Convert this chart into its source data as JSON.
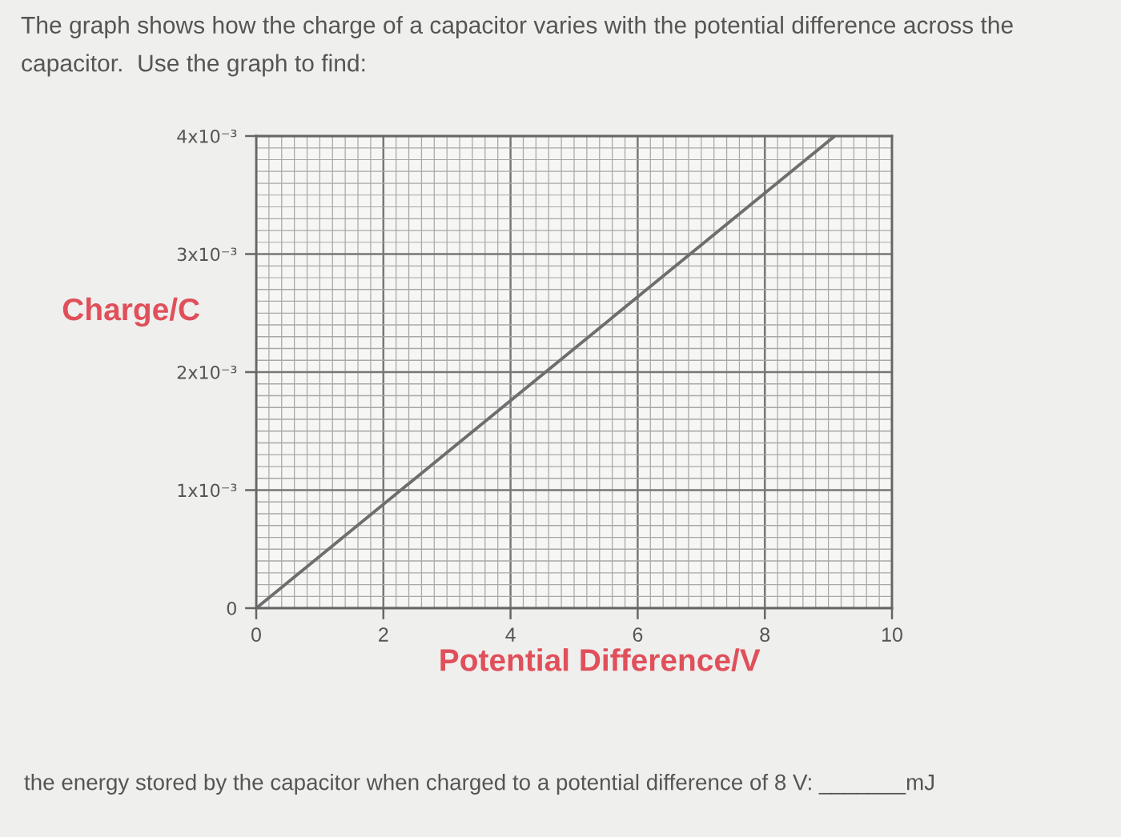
{
  "chart_data": {
    "type": "line",
    "title": "The graph shows how the charge of a capacitor varies with the potential difference across the capacitor.  Use the graph to find:",
    "xlabel": "Potential Difference/V",
    "ylabel": "Charge/C",
    "annotations": [
      "the energy stored by the capacitor when charged to a potential difference of 8 V: _______mJ"
    ],
    "x": [
      0,
      9.1
    ],
    "series": [
      {
        "color": "#6e6e6e",
        "values": [
          0,
          0.004
        ]
      }
    ],
    "xlim": [
      0,
      10
    ],
    "ylim": [
      0,
      0.004
    ],
    "xticks": [
      0,
      2,
      4,
      6,
      8,
      10
    ],
    "yticks": [
      0,
      {
        "value": 0.001,
        "label": "1x10⁻³"
      },
      {
        "value": 0.002,
        "label": "2x10⁻³"
      },
      {
        "value": 0.003,
        "label": "3x10⁻³"
      },
      {
        "value": 0.004,
        "label": "4x10⁻³"
      }
    ],
    "grid": true,
    "marker": "none",
    "line_style": "solid"
  }
}
